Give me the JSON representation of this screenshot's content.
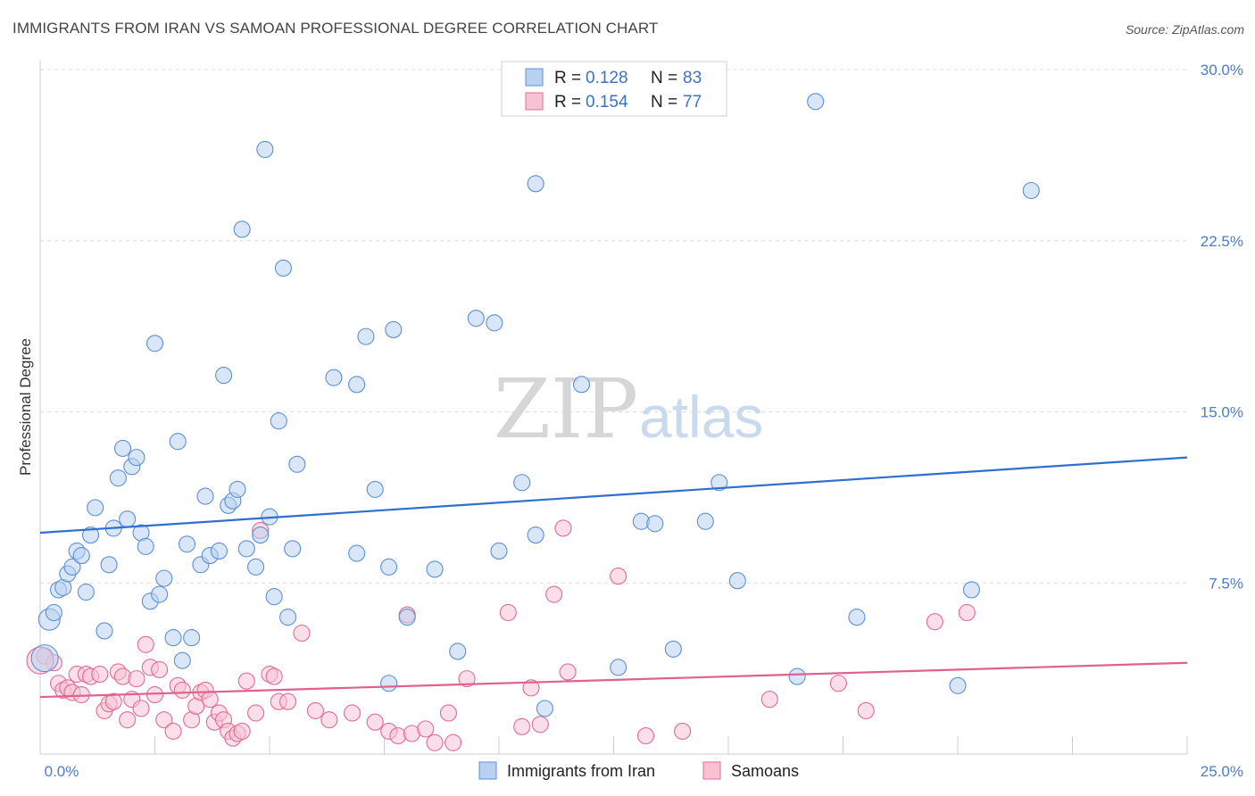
{
  "title": "IMMIGRANTS FROM IRAN VS SAMOAN PROFESSIONAL DEGREE CORRELATION CHART",
  "source": "Source: ZipAtlas.com",
  "watermark": {
    "part1": "ZIP",
    "part2": "atlas"
  },
  "legend": {
    "r_label": "R =",
    "n_label": "N =",
    "series": [
      {
        "name": "Immigrants from Iran",
        "r": "0.128",
        "n": "83",
        "color": "#5b8fd6",
        "fill": "#b9d1f1"
      },
      {
        "name": "Samoans",
        "r": "0.154",
        "n": "77",
        "color": "#e06b94",
        "fill": "#f7c3d3"
      }
    ]
  },
  "chart_data": {
    "type": "scatter",
    "ylabel": "Professional Degree",
    "x_tick_labels": [
      "0.0%",
      "25.0%"
    ],
    "y_tick_labels": [
      "7.5%",
      "15.0%",
      "22.5%",
      "30.0%"
    ],
    "xlim": [
      0,
      25
    ],
    "ylim": [
      0,
      30
    ],
    "grid": true,
    "legend_position": "top-center",
    "series": [
      {
        "name": "Immigrants from Iran",
        "color": "#5b8fd6",
        "trend": {
          "x": [
            0,
            25
          ],
          "y": [
            9.7,
            13.0
          ]
        },
        "points": [
          [
            0.2,
            5.9
          ],
          [
            0.3,
            6.2
          ],
          [
            0.4,
            7.2
          ],
          [
            0.5,
            7.3
          ],
          [
            0.6,
            7.9
          ],
          [
            0.7,
            8.2
          ],
          [
            0.8,
            8.9
          ],
          [
            0.9,
            8.7
          ],
          [
            1.0,
            7.1
          ],
          [
            1.1,
            9.6
          ],
          [
            1.2,
            10.8
          ],
          [
            1.4,
            5.4
          ],
          [
            1.5,
            8.3
          ],
          [
            1.6,
            9.9
          ],
          [
            1.7,
            12.1
          ],
          [
            1.8,
            13.4
          ],
          [
            1.9,
            10.3
          ],
          [
            2.0,
            12.6
          ],
          [
            2.1,
            13.0
          ],
          [
            2.2,
            9.7
          ],
          [
            2.3,
            9.1
          ],
          [
            2.4,
            6.7
          ],
          [
            2.5,
            18.0
          ],
          [
            2.6,
            7.0
          ],
          [
            2.7,
            7.7
          ],
          [
            2.9,
            5.1
          ],
          [
            3.0,
            13.7
          ],
          [
            3.1,
            4.1
          ],
          [
            3.2,
            9.2
          ],
          [
            3.3,
            5.1
          ],
          [
            3.5,
            8.3
          ],
          [
            3.6,
            11.3
          ],
          [
            3.7,
            8.7
          ],
          [
            3.9,
            8.9
          ],
          [
            4.0,
            16.6
          ],
          [
            4.1,
            10.9
          ],
          [
            4.2,
            11.1
          ],
          [
            4.3,
            11.6
          ],
          [
            4.4,
            23.0
          ],
          [
            4.5,
            9.0
          ],
          [
            4.7,
            8.2
          ],
          [
            4.8,
            9.6
          ],
          [
            4.9,
            26.5
          ],
          [
            5.0,
            10.4
          ],
          [
            5.1,
            6.9
          ],
          [
            5.2,
            14.6
          ],
          [
            5.3,
            21.3
          ],
          [
            5.4,
            6.0
          ],
          [
            5.5,
            9.0
          ],
          [
            5.6,
            12.7
          ],
          [
            6.4,
            16.5
          ],
          [
            6.9,
            16.2
          ],
          [
            6.9,
            8.8
          ],
          [
            7.1,
            18.3
          ],
          [
            7.3,
            11.6
          ],
          [
            7.6,
            3.1
          ],
          [
            7.6,
            8.2
          ],
          [
            7.7,
            18.6
          ],
          [
            8.0,
            6.0
          ],
          [
            8.6,
            8.1
          ],
          [
            9.1,
            4.5
          ],
          [
            9.5,
            19.1
          ],
          [
            9.9,
            18.9
          ],
          [
            10.0,
            8.9
          ],
          [
            10.5,
            11.9
          ],
          [
            10.8,
            25.0
          ],
          [
            10.8,
            9.6
          ],
          [
            11.0,
            2.0
          ],
          [
            11.8,
            16.2
          ],
          [
            12.6,
            3.8
          ],
          [
            13.1,
            10.2
          ],
          [
            13.4,
            10.1
          ],
          [
            13.8,
            4.6
          ],
          [
            14.5,
            10.2
          ],
          [
            14.8,
            11.9
          ],
          [
            15.2,
            7.6
          ],
          [
            16.5,
            3.4
          ],
          [
            16.9,
            28.6
          ],
          [
            17.8,
            6.0
          ],
          [
            20.0,
            3.0
          ],
          [
            20.3,
            7.2
          ],
          [
            21.6,
            24.7
          ],
          [
            0.1,
            4.2
          ]
        ]
      },
      {
        "name": "Samoans",
        "color": "#e06b94",
        "trend": {
          "x": [
            0,
            25
          ],
          "y": [
            2.5,
            4.0
          ]
        },
        "points": [
          [
            0.1,
            4.3
          ],
          [
            0.3,
            4.0
          ],
          [
            0.4,
            3.1
          ],
          [
            0.5,
            2.8
          ],
          [
            0.6,
            2.9
          ],
          [
            0.7,
            2.7
          ],
          [
            0.8,
            3.5
          ],
          [
            0.9,
            2.6
          ],
          [
            1.0,
            3.5
          ],
          [
            1.1,
            3.4
          ],
          [
            1.3,
            3.5
          ],
          [
            1.4,
            1.9
          ],
          [
            1.5,
            2.2
          ],
          [
            1.6,
            2.3
          ],
          [
            1.7,
            3.6
          ],
          [
            1.8,
            3.4
          ],
          [
            1.9,
            1.5
          ],
          [
            2.0,
            2.4
          ],
          [
            2.1,
            3.3
          ],
          [
            2.2,
            2.0
          ],
          [
            2.3,
            4.8
          ],
          [
            2.4,
            3.8
          ],
          [
            2.5,
            2.6
          ],
          [
            2.6,
            3.7
          ],
          [
            2.7,
            1.5
          ],
          [
            2.9,
            1.0
          ],
          [
            3.0,
            3.0
          ],
          [
            3.1,
            2.8
          ],
          [
            3.3,
            1.5
          ],
          [
            3.4,
            2.1
          ],
          [
            3.5,
            2.7
          ],
          [
            3.6,
            2.8
          ],
          [
            3.7,
            2.4
          ],
          [
            3.8,
            1.4
          ],
          [
            3.9,
            1.8
          ],
          [
            4.0,
            1.5
          ],
          [
            4.1,
            1.0
          ],
          [
            4.2,
            0.7
          ],
          [
            4.3,
            0.9
          ],
          [
            4.4,
            1.0
          ],
          [
            4.5,
            3.2
          ],
          [
            4.7,
            1.8
          ],
          [
            4.8,
            9.8
          ],
          [
            5.0,
            3.5
          ],
          [
            5.1,
            3.4
          ],
          [
            5.2,
            2.3
          ],
          [
            5.4,
            2.3
          ],
          [
            5.7,
            5.3
          ],
          [
            6.0,
            1.9
          ],
          [
            6.3,
            1.5
          ],
          [
            6.8,
            1.8
          ],
          [
            7.3,
            1.4
          ],
          [
            7.6,
            1.0
          ],
          [
            7.8,
            0.8
          ],
          [
            8.0,
            6.1
          ],
          [
            8.1,
            0.9
          ],
          [
            8.4,
            1.1
          ],
          [
            8.6,
            0.5
          ],
          [
            8.9,
            1.8
          ],
          [
            9.0,
            0.5
          ],
          [
            9.3,
            3.3
          ],
          [
            10.2,
            6.2
          ],
          [
            10.5,
            1.2
          ],
          [
            10.7,
            2.9
          ],
          [
            10.9,
            1.3
          ],
          [
            11.2,
            7.0
          ],
          [
            11.4,
            9.9
          ],
          [
            11.5,
            3.6
          ],
          [
            12.6,
            7.8
          ],
          [
            13.2,
            0.8
          ],
          [
            14.0,
            1.0
          ],
          [
            15.9,
            2.4
          ],
          [
            17.4,
            3.1
          ],
          [
            18.0,
            1.9
          ],
          [
            19.5,
            5.8
          ],
          [
            20.2,
            6.2
          ],
          [
            0.0,
            4.1
          ]
        ]
      }
    ]
  }
}
